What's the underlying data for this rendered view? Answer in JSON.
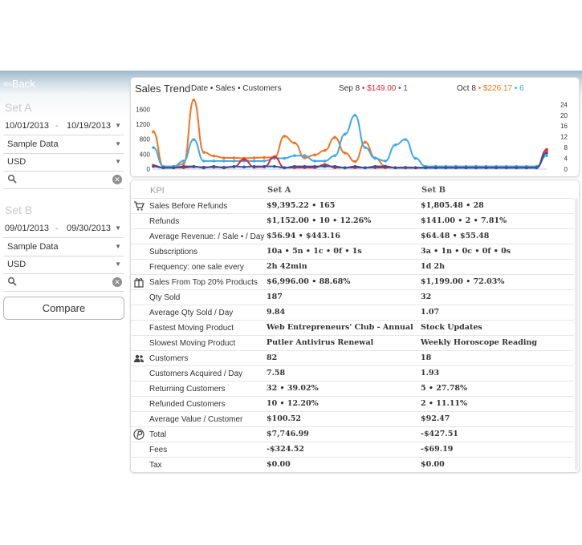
{
  "nav": {
    "back_label": "Back"
  },
  "sidebar": {
    "set_a": {
      "label": "Set A",
      "date_from": "10/01/2013",
      "date_sep": "-",
      "date_to": "10/19/2013",
      "source": "Sample Data",
      "currency": "USD",
      "search_placeholder": ""
    },
    "set_b": {
      "label": "Set B",
      "date_from": "09/01/2013",
      "date_sep": "-",
      "date_to": "09/30/2013",
      "source": "Sample Data",
      "currency": "USD",
      "search_placeholder": ""
    },
    "compare_label": "Compare"
  },
  "chart": {
    "title": "Sales Trend",
    "subtitle": "Date • Sales • Customers",
    "legend": {
      "b_date": "Sep 8",
      "b_sales": "• $149.00",
      "b_customers": "• 1",
      "a_date": "Oct 8",
      "a_sales": "• $226.17",
      "a_customers": "• 6"
    },
    "colors": {
      "set_a_sales": "#f27420",
      "set_a_customers": "#3fa9e8",
      "set_b_sales": "#d62b2b",
      "set_b_customers": "#2b54a8"
    }
  },
  "chart_data": {
    "type": "line",
    "x": [
      1,
      2,
      3,
      4,
      5,
      6,
      7,
      8,
      9,
      10,
      11,
      12,
      13,
      14,
      15,
      16,
      17,
      18,
      19,
      20,
      21,
      22,
      23,
      24,
      25,
      26,
      27,
      28,
      29,
      30,
      31,
      32,
      33,
      34,
      35,
      36,
      37,
      38,
      39,
      40
    ],
    "y_left_ticks": [
      "0",
      "400",
      "800",
      "1200",
      "1600"
    ],
    "y_right_ticks": [
      "0",
      "4",
      "8",
      "12",
      "16",
      "20",
      "24"
    ],
    "ylim_left": [
      0,
      1800
    ],
    "ylim_right": [
      0,
      25
    ],
    "series": [
      {
        "name": "",
        "axis": "left",
        "color": "#f27420",
        "values": [
          1000,
          60,
          70,
          140,
          1850,
          450,
          350,
          300,
          300,
          290,
          300,
          310,
          310,
          880,
          700,
          300,
          380,
          500,
          850,
          430,
          200,
          720,
          300,
          80,
          40,
          50,
          45,
          40,
          40,
          40,
          40,
          40,
          40,
          40,
          40,
          40,
          40,
          40,
          40,
          480
        ]
      },
      {
        "name": "",
        "axis": "right",
        "color": "#3fa9e8",
        "values": [
          8,
          1,
          1,
          3,
          11,
          3,
          3,
          3,
          3,
          3,
          3,
          3,
          4,
          4,
          5,
          5,
          3,
          3,
          5,
          13,
          20,
          8,
          4,
          3,
          9,
          11,
          4,
          1,
          1,
          1,
          1,
          1,
          1,
          1,
          1,
          1,
          1,
          1,
          1,
          5
        ]
      },
      {
        "name": "",
        "axis": "left",
        "color": "#d62b2b",
        "values": [
          100,
          40,
          40,
          40,
          60,
          50,
          50,
          50,
          60,
          260,
          50,
          60,
          330,
          40,
          40,
          40,
          40,
          120,
          40,
          40,
          40,
          40,
          40,
          40,
          40,
          40,
          40,
          40,
          40,
          40,
          40,
          40,
          40,
          40,
          40,
          40,
          40,
          40,
          40,
          520
        ]
      },
      {
        "name": "",
        "axis": "right",
        "color": "#2b54a8",
        "values": [
          1,
          0.5,
          0.5,
          1,
          1,
          0.5,
          1,
          0.5,
          1,
          0.8,
          1,
          1,
          1,
          0.5,
          1,
          1,
          1,
          1,
          1,
          0.5,
          1,
          0.5,
          1,
          1,
          0.5,
          0.5,
          0.5,
          0.5,
          0.5,
          0.5,
          0.5,
          0.5,
          0.5,
          0.5,
          0.5,
          0.5,
          0.5,
          0.5,
          0.5,
          6
        ]
      }
    ]
  },
  "table": {
    "headers": {
      "kpi": "KPI",
      "set_a": "Set A",
      "set_b": "Set B"
    },
    "rows": [
      {
        "icon": "cart-icon",
        "kpi": "Sales Before Refunds",
        "a": "$9,395.22 • 165",
        "b": "$1,805.48 • 28"
      },
      {
        "icon": "",
        "kpi": "Refunds",
        "a": "$1,152.00 • 10 • 12.26%",
        "b": "$141.00 • 2 • 7.81%"
      },
      {
        "icon": "",
        "kpi": "Average Revenue: / Sale • / Day",
        "a": "$56.94 • $443.16",
        "b": "$64.48 • $55.48"
      },
      {
        "icon": "",
        "kpi": "Subscriptions",
        "a": "10a • 5n • 1c • 0f • 1s",
        "b": "3a • 1n • 0c • 0f • 0s"
      },
      {
        "icon": "",
        "kpi": "Frequency: one sale every",
        "a": "2h 42min",
        "b": "1d 2h"
      },
      {
        "icon": "gift-icon",
        "kpi": "Sales From Top 20% Products",
        "a": "$6,996.00 • 88.68%",
        "b": "$1,199.00 • 72.03%"
      },
      {
        "icon": "",
        "kpi": "Qty Sold",
        "a": "187",
        "b": "32"
      },
      {
        "icon": "",
        "kpi": "Average Qty Sold / Day",
        "a": "9.84",
        "b": "1.07"
      },
      {
        "icon": "",
        "kpi": "Fastest Moving Product",
        "a": "Web Entrepreneurs' Club - Annual",
        "b": "Stock Updates"
      },
      {
        "icon": "",
        "kpi": "Slowest Moving Product",
        "a": "Putler Antivirus Renewal",
        "b": "Weekly Horoscope Reading"
      },
      {
        "icon": "users-icon",
        "kpi": "Customers",
        "a": "82",
        "b": "18"
      },
      {
        "icon": "",
        "kpi": "Customers Acquired / Day",
        "a": "7.58",
        "b": "1.93"
      },
      {
        "icon": "",
        "kpi": "Returning Customers",
        "a": "32 • 39.02%",
        "b": "5 • 27.78%"
      },
      {
        "icon": "",
        "kpi": "Refunded Customers",
        "a": "10 • 12.20%",
        "b": "2 • 11.11%"
      },
      {
        "icon": "",
        "kpi": "Average Value / Customer",
        "a": "$100.52",
        "b": "$92.47"
      },
      {
        "icon": "paypal-icon",
        "kpi": "Total",
        "a": "$7,746.99",
        "b": "-$427.51"
      },
      {
        "icon": "",
        "kpi": "Fees",
        "a": "-$324.52",
        "b": "-$69.19"
      },
      {
        "icon": "",
        "kpi": "Tax",
        "a": "$0.00",
        "b": "$0.00"
      }
    ]
  }
}
